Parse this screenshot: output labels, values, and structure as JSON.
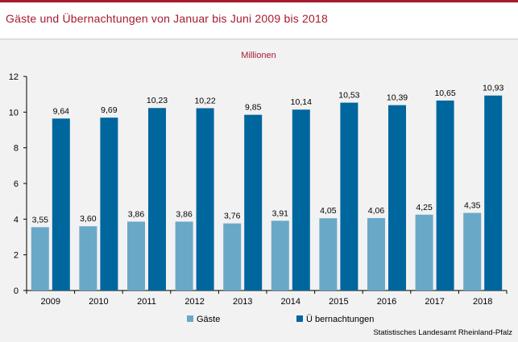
{
  "chart_data": {
    "type": "bar",
    "title": "Gäste und Übernachtungen von Januar bis Juni 2009 bis 2018",
    "unit_label": "Millionen",
    "categories": [
      "2009",
      "2010",
      "2011",
      "2012",
      "2013",
      "2014",
      "2015",
      "2016",
      "2017",
      "2018"
    ],
    "series": [
      {
        "name": "Gäste",
        "color": "#6aa8c8",
        "values": [
          3.55,
          3.6,
          3.86,
          3.86,
          3.76,
          3.91,
          4.05,
          4.06,
          4.25,
          4.35
        ],
        "labels": [
          "3,55",
          "3,60",
          "3,86",
          "3,86",
          "3,76",
          "3,91",
          "4,05",
          "4,06",
          "4,25",
          "4,35"
        ]
      },
      {
        "name": "Ü bernachtungen",
        "color": "#00669e",
        "values": [
          9.64,
          9.69,
          10.23,
          10.22,
          9.85,
          10.14,
          10.53,
          10.39,
          10.65,
          10.93
        ],
        "labels": [
          "9,64",
          "9,69",
          "10,23",
          "10,22",
          "9,85",
          "10,14",
          "10,53",
          "10,39",
          "10,65",
          "10,93"
        ]
      }
    ],
    "ylim": [
      0,
      12
    ],
    "yticks": [
      "0",
      "2",
      "4",
      "6",
      "8",
      "10",
      "12"
    ],
    "ytick_values": [
      0,
      2,
      4,
      6,
      8,
      10,
      12
    ],
    "grid": false,
    "legend_position": "bottom",
    "source": "Statistisches Landesamt Rheinland-Pfalz"
  }
}
